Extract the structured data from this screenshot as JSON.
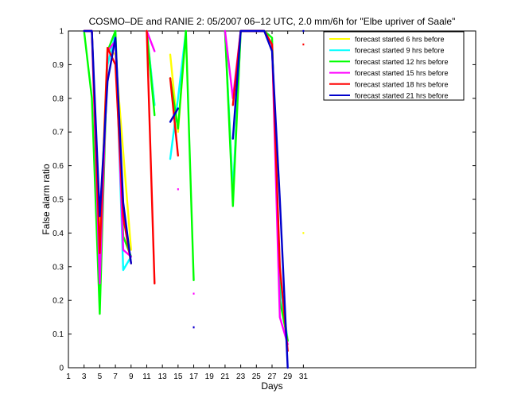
{
  "chart_data": {
    "type": "line",
    "title": "COSMO–DE and RANIE 2: 05/2007 06–12 UTC, 2.0 mm/6h for \"Elbe upriver of Saale\"",
    "xlabel": "Days",
    "ylabel": "False alarm ratio",
    "xlim": [
      1,
      53
    ],
    "ylim": [
      0,
      1
    ],
    "xticks": [
      1,
      3,
      5,
      7,
      9,
      11,
      13,
      15,
      17,
      19,
      21,
      23,
      25,
      27,
      29,
      31
    ],
    "yticks": [
      0,
      0.1,
      0.2,
      0.3,
      0.4,
      0.5,
      0.6,
      0.7,
      0.8,
      0.9,
      1
    ],
    "ytick_labels": [
      "0",
      "0.1",
      "0.2",
      "0.3",
      "0.4",
      "0.5",
      "0.6",
      "0.7",
      "0.8",
      "0.9",
      "1"
    ],
    "grid": false,
    "legend_position": "top-right",
    "series": [
      {
        "name": "forecast started 6 hrs before",
        "color": "#ffff00",
        "segments": [
          [
            [
              3,
              1
            ],
            [
              4,
              1
            ],
            [
              5,
              0.37
            ],
            [
              6,
              0.95
            ],
            [
              7,
              0.93
            ],
            [
              8,
              0.64
            ],
            [
              9,
              0.35
            ]
          ],
          [
            [
              11,
              1
            ],
            [
              12,
              0.78
            ]
          ],
          [
            [
              14,
              0.93
            ],
            [
              15,
              0.7
            ],
            [
              16,
              1
            ]
          ],
          [
            [
              21,
              1
            ],
            [
              22,
              0.52
            ],
            [
              23,
              1
            ],
            [
              26,
              1
            ],
            [
              27,
              0.96
            ],
            [
              28,
              0.27
            ],
            [
              29,
              0.08
            ]
          ]
        ],
        "points": [
          [
            31,
            0.4
          ]
        ]
      },
      {
        "name": "forecast started 9 hrs before",
        "color": "#00ffff",
        "segments": [
          [
            [
              3,
              1
            ],
            [
              4,
              1
            ],
            [
              5,
              0.3
            ],
            [
              6,
              0.9
            ],
            [
              7,
              0.99
            ],
            [
              8,
              0.29
            ],
            [
              9,
              0.33
            ]
          ],
          [
            [
              11,
              1
            ],
            [
              12,
              0.78
            ]
          ],
          [
            [
              14,
              0.62
            ],
            [
              15,
              0.8
            ],
            [
              16,
              1
            ]
          ],
          [
            [
              21,
              1
            ],
            [
              22,
              0.52
            ],
            [
              23,
              1
            ],
            [
              26,
              1
            ],
            [
              27,
              0.96
            ],
            [
              28,
              0.25
            ],
            [
              29,
              0.08
            ]
          ]
        ],
        "points": []
      },
      {
        "name": "forecast started 12 hrs before",
        "color": "#00ff00",
        "segments": [
          [
            [
              3,
              1
            ],
            [
              4,
              0.8
            ],
            [
              5,
              0.16
            ],
            [
              6,
              0.94
            ],
            [
              7,
              1
            ],
            [
              8,
              0.39
            ],
            [
              9,
              0.33
            ]
          ],
          [
            [
              11,
              1
            ],
            [
              12,
              0.75
            ]
          ],
          [
            [
              14,
              0.86
            ],
            [
              15,
              0.71
            ],
            [
              16,
              1
            ],
            [
              17,
              0.26
            ]
          ],
          [
            [
              21,
              1
            ],
            [
              22,
              0.48
            ],
            [
              23,
              1
            ],
            [
              26,
              1
            ],
            [
              27,
              0.98
            ],
            [
              28,
              0.2
            ],
            [
              29,
              0.08
            ]
          ]
        ],
        "points": []
      },
      {
        "name": "forecast started 15 hrs before",
        "color": "#ff00ff",
        "segments": [
          [
            [
              3,
              1
            ],
            [
              4,
              1
            ],
            [
              5,
              0.25
            ],
            [
              6,
              0.94
            ],
            [
              7,
              0.97
            ],
            [
              8,
              0.35
            ],
            [
              9,
              0.33
            ]
          ],
          [
            [
              11,
              1
            ],
            [
              12,
              0.94
            ]
          ],
          [
            [
              21,
              1
            ],
            [
              22,
              0.8
            ],
            [
              23,
              1
            ],
            [
              26,
              1
            ],
            [
              27,
              0.96
            ],
            [
              28,
              0.15
            ],
            [
              29,
              0.07
            ]
          ]
        ],
        "points": [
          [
            15,
            0.53
          ],
          [
            17,
            0.22
          ],
          [
            17,
            0.12
          ]
        ]
      },
      {
        "name": "forecast started 18 hrs before",
        "color": "#ff0000",
        "segments": [
          [
            [
              3,
              1
            ],
            [
              4,
              1
            ],
            [
              5,
              0.34
            ],
            [
              6,
              0.95
            ],
            [
              7,
              0.9
            ],
            [
              8,
              0.45
            ],
            [
              9,
              0.31
            ]
          ],
          [
            [
              11,
              1
            ],
            [
              12,
              0.25
            ]
          ],
          [
            [
              14,
              0.86
            ],
            [
              15,
              0.63
            ]
          ],
          [
            [
              22,
              0.78
            ],
            [
              23,
              1
            ],
            [
              26,
              1
            ],
            [
              27,
              0.96
            ],
            [
              28,
              0.3
            ],
            [
              29,
              0.05
            ]
          ]
        ],
        "points": [
          [
            31,
            0.96
          ]
        ]
      },
      {
        "name": "forecast started 21 hrs before",
        "color": "#0000cc",
        "segments": [
          [
            [
              3,
              1
            ],
            [
              4,
              1
            ],
            [
              5,
              0.45
            ],
            [
              6,
              0.85
            ],
            [
              7,
              0.98
            ],
            [
              8,
              0.49
            ],
            [
              9,
              0.31
            ]
          ],
          [
            [
              14,
              0.73
            ],
            [
              15,
              0.77
            ]
          ],
          [
            [
              22,
              0.68
            ],
            [
              23,
              1
            ],
            [
              26,
              1
            ],
            [
              27,
              0.94
            ],
            [
              28,
              0.5
            ],
            [
              29,
              0
            ]
          ]
        ],
        "points": [
          [
            17,
            0.12
          ],
          [
            31,
            1
          ]
        ]
      }
    ]
  }
}
